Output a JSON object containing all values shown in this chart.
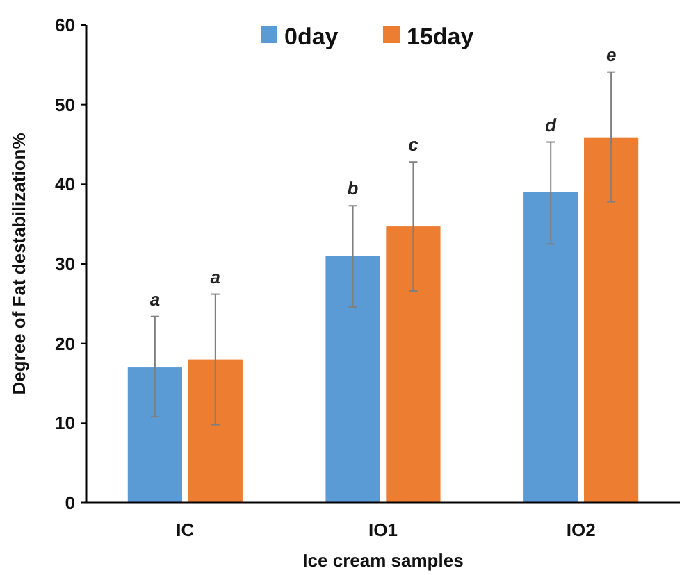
{
  "chart_data": {
    "type": "bar",
    "xlabel": "Ice cream samples",
    "ylabel": "Degree of Fat destabilization%",
    "categories": [
      "IC",
      "IO1",
      "IO2"
    ],
    "series": [
      {
        "name": "0day",
        "color": "#5b9bd5",
        "values": [
          17,
          31,
          39
        ],
        "errors": [
          [
            10.8,
            23.4
          ],
          [
            24.6,
            37.3
          ],
          [
            32.5,
            45.3
          ]
        ]
      },
      {
        "name": "15day",
        "color": "#ed7d31",
        "values": [
          18,
          34.7,
          45.9
        ],
        "errors": [
          [
            9.8,
            26.2
          ],
          [
            26.6,
            42.8
          ],
          [
            37.8,
            54.1
          ]
        ]
      }
    ],
    "annotations": [
      "a",
      "a",
      "b",
      "c",
      "d",
      "e"
    ],
    "ylim": [
      0,
      60
    ],
    "yticks": [
      0,
      10,
      20,
      30,
      40,
      50,
      60
    ],
    "grid": false,
    "legend": "top"
  }
}
